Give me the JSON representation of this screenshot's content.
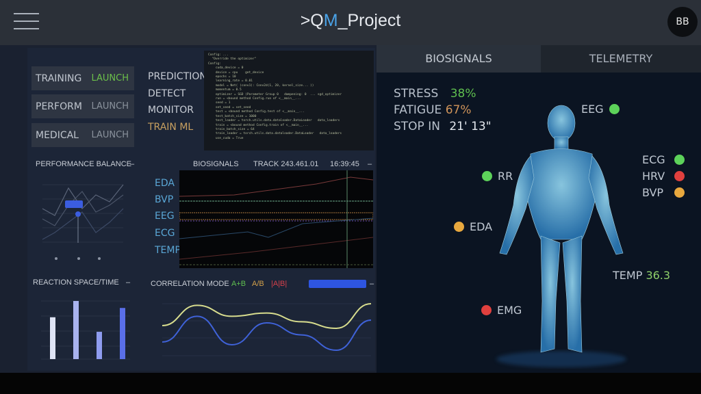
{
  "header": {
    "title_prefix": ">Q",
    "title_accent": "M",
    "title_suffix": "_Project",
    "avatar": "BB",
    "menu_icon": "hamburger-icon"
  },
  "modes": [
    {
      "label": "TRAINING",
      "action": "LAUNCH",
      "active": true
    },
    {
      "label": "PERFORM",
      "action": "LAUNCH"
    },
    {
      "label": "MEDICAL",
      "action": "LAUNCH"
    }
  ],
  "menu": [
    "PREDICTION",
    "DETECT",
    "MONITOR",
    "TRAIN ML"
  ],
  "code": "Config: ...\n  \"Override the optimizer\"\nConfig:\n    cuda_device = 0\n    device = cpu    get_device\n    epochs = 10\n    learning_rate = 0.01\n    model = Net( (conv1): Conv2d(1, 20, kernel_size... ))\n    momentum = 0.5\n    optimizer = SGD (Parameter Group 0   dampening: 0  ... sgd_optimizer\n    run = <bound method Config.run of <__main__...\n    seed = 1\n    set_seed = set_seed\n    test = <bound method Config.test of <__main__...\n    test_batch_size = 1000\n    test_loader = torch.utils.data.dataloader.DataLoader   data_loaders\n    train = <bound method Config.train of <__main__...\n    train_batch_size = 64\n    train_loader = torch.utils.data.dataloader.DataLoader   data_loaders\n    use_cuda = True",
  "performance": {
    "title": "PERFORMANCE BALANCE",
    "menu": "–"
  },
  "biosignals": {
    "title": "BIOSIGNALS",
    "track": "TRACK 243.461.01",
    "time": "16:39:45",
    "menu": "–",
    "channels": [
      "EDA",
      "BVP",
      "EEG",
      "ECG",
      "TEMP"
    ]
  },
  "reaction": {
    "title": "REACTION SPACE/TIME",
    "menu": "–",
    "values": [
      0.72,
      1.0,
      0.47,
      0.88
    ],
    "colors": [
      "#dfe4f5",
      "#a9b3ef",
      "#8f9cf0",
      "#5a6fe8"
    ]
  },
  "correlation": {
    "title": "CORRELATION MODE",
    "modes": [
      {
        "label": "A+B",
        "color": "#5fbf4f"
      },
      {
        "label": "A/B",
        "color": "#d2a04a"
      },
      {
        "label": "|A|B|",
        "color": "#d6404a"
      }
    ],
    "menu": "–",
    "chart_data": {
      "type": "line",
      "series": [
        {
          "values": [
            0.55,
            0.92,
            0.72,
            0.78,
            0.62,
            0.5,
            0.95
          ],
          "color": "#d8dd8e"
        },
        {
          "values": [
            0.25,
            0.72,
            0.2,
            0.6,
            0.38,
            0.1,
            0.65
          ],
          "color": "#3f62d8"
        }
      ]
    }
  },
  "tabs": [
    {
      "label": "BIOSIGNALS",
      "active": true
    },
    {
      "label": "TELEMETRY"
    }
  ],
  "stats": [
    {
      "label": "STRESS",
      "value": "38%",
      "color": "#5fbf4f"
    },
    {
      "label": "FATIGUE",
      "value": "67%",
      "color": "#d0945a"
    },
    {
      "label": "STOP IN",
      "value": "21' 13\"",
      "color": "#e4e8ee"
    }
  ],
  "sensors": {
    "eeg": "EEG",
    "rr": "RR",
    "ecg": "ECG",
    "hrv": "HRV",
    "bvp": "BVP",
    "eda": "EDA",
    "temp": "TEMP",
    "temp_value": "36.3",
    "emg": "EMG"
  },
  "status_colors": {
    "ok": "#5dd25a",
    "warn": "#e8a83e",
    "alert": "#e0403e"
  }
}
